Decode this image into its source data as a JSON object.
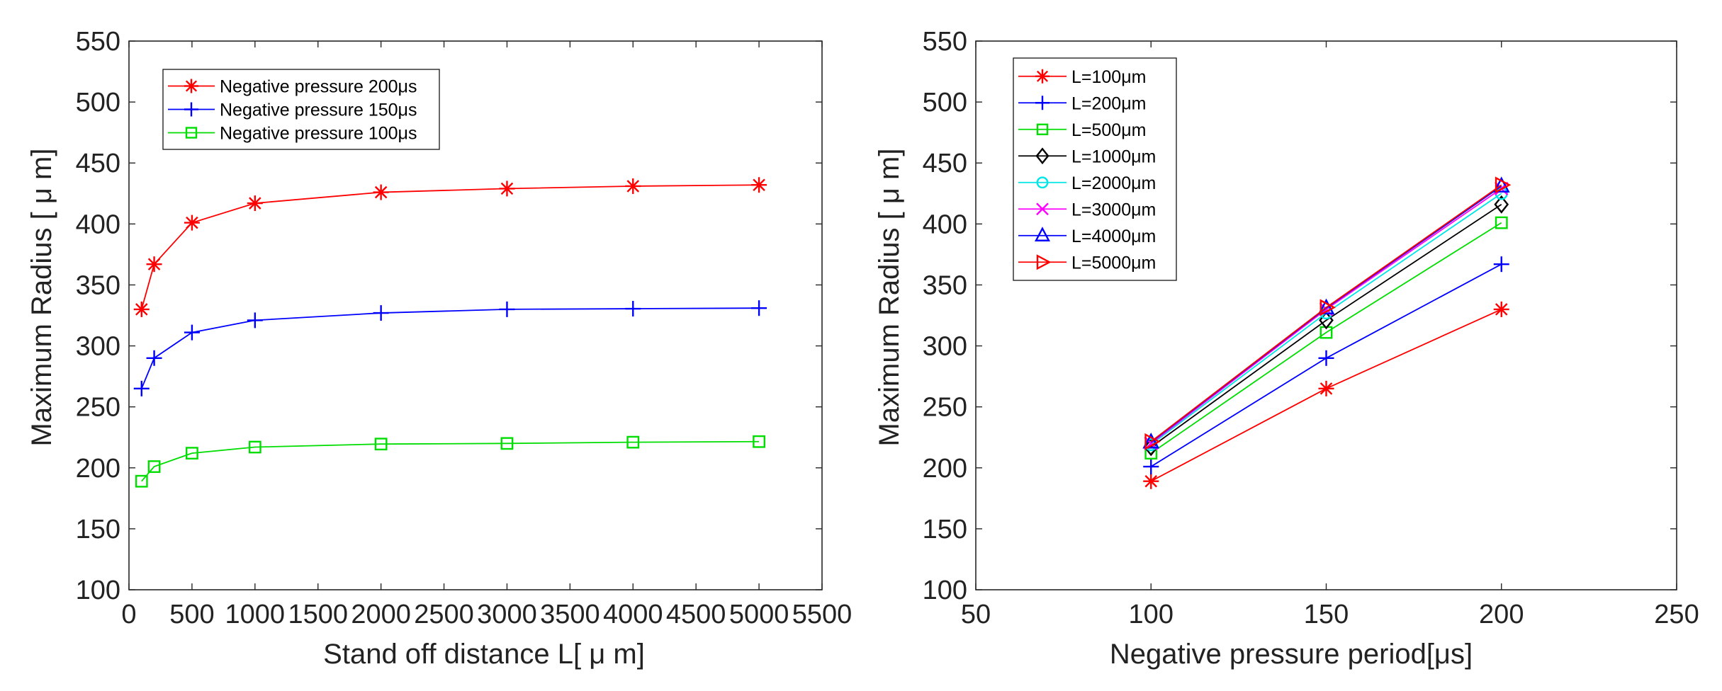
{
  "chart_data": [
    {
      "type": "line",
      "title": "",
      "xlabel": "Stand off distance L[ μ m]",
      "ylabel": "Maximum Radius [ μ m]",
      "xlim": [
        0,
        5500
      ],
      "ylim": [
        100,
        550
      ],
      "xticks": [
        0,
        500,
        1000,
        1500,
        2000,
        2500,
        3000,
        3500,
        4000,
        4500,
        5000,
        5500
      ],
      "yticks": [
        100,
        150,
        200,
        250,
        300,
        350,
        400,
        450,
        500,
        550
      ],
      "legend_position": "top-left",
      "series": [
        {
          "name": "Negative pressure 200μs",
          "color": "#ff0000",
          "marker": "asterisk",
          "x": [
            100,
            200,
            500,
            1000,
            2000,
            3000,
            4000,
            5000
          ],
          "y": [
            330,
            367,
            401,
            417,
            426,
            429,
            431,
            432
          ]
        },
        {
          "name": "Negative pressure 150μs",
          "color": "#0000ff",
          "marker": "plus",
          "x": [
            100,
            200,
            500,
            1000,
            2000,
            3000,
            4000,
            5000
          ],
          "y": [
            265,
            290,
            311,
            321,
            327,
            330,
            330.5,
            331
          ]
        },
        {
          "name": "Negative pressure 100μs",
          "color": "#00dd00",
          "marker": "square",
          "x": [
            100,
            200,
            500,
            1000,
            2000,
            3000,
            4000,
            5000
          ],
          "y": [
            189,
            201,
            212,
            217,
            219.5,
            220,
            221,
            221.5
          ]
        }
      ]
    },
    {
      "type": "line",
      "title": "",
      "xlabel": "Negative pressure period[μs]",
      "ylabel": "Maximum Radius [ μ m]",
      "xlim": [
        50,
        250
      ],
      "ylim": [
        100,
        550
      ],
      "xticks": [
        50,
        100,
        150,
        200,
        250
      ],
      "yticks": [
        100,
        150,
        200,
        250,
        300,
        350,
        400,
        450,
        500,
        550
      ],
      "legend_position": "top-left",
      "series": [
        {
          "name": "L=100μm",
          "color": "#ff0000",
          "marker": "asterisk",
          "x": [
            100,
            150,
            200
          ],
          "y": [
            189,
            265,
            330
          ]
        },
        {
          "name": "L=200μm",
          "color": "#0000ff",
          "marker": "plus",
          "x": [
            100,
            150,
            200
          ],
          "y": [
            201,
            290,
            367
          ]
        },
        {
          "name": "L=500μm",
          "color": "#00dd00",
          "marker": "square",
          "x": [
            100,
            150,
            200
          ],
          "y": [
            212,
            311,
            401
          ]
        },
        {
          "name": "L=1000μm",
          "color": "#000000",
          "marker": "diamond",
          "x": [
            100,
            150,
            200
          ],
          "y": [
            217,
            321,
            416
          ]
        },
        {
          "name": "L=2000μm",
          "color": "#00e5e5",
          "marker": "circle",
          "x": [
            100,
            150,
            200
          ],
          "y": [
            219,
            327,
            425
          ]
        },
        {
          "name": "L=3000μm",
          "color": "#ff00ff",
          "marker": "x",
          "x": [
            100,
            150,
            200
          ],
          "y": [
            220,
            330,
            429
          ]
        },
        {
          "name": "L=4000μm",
          "color": "#0000ff",
          "marker": "triangle",
          "x": [
            100,
            150,
            200
          ],
          "y": [
            221,
            331,
            431
          ]
        },
        {
          "name": "L=5000μm",
          "color": "#ff0000",
          "marker": "triangle-right",
          "x": [
            100,
            150,
            200
          ],
          "y": [
            221.5,
            331.5,
            432
          ]
        }
      ]
    }
  ]
}
